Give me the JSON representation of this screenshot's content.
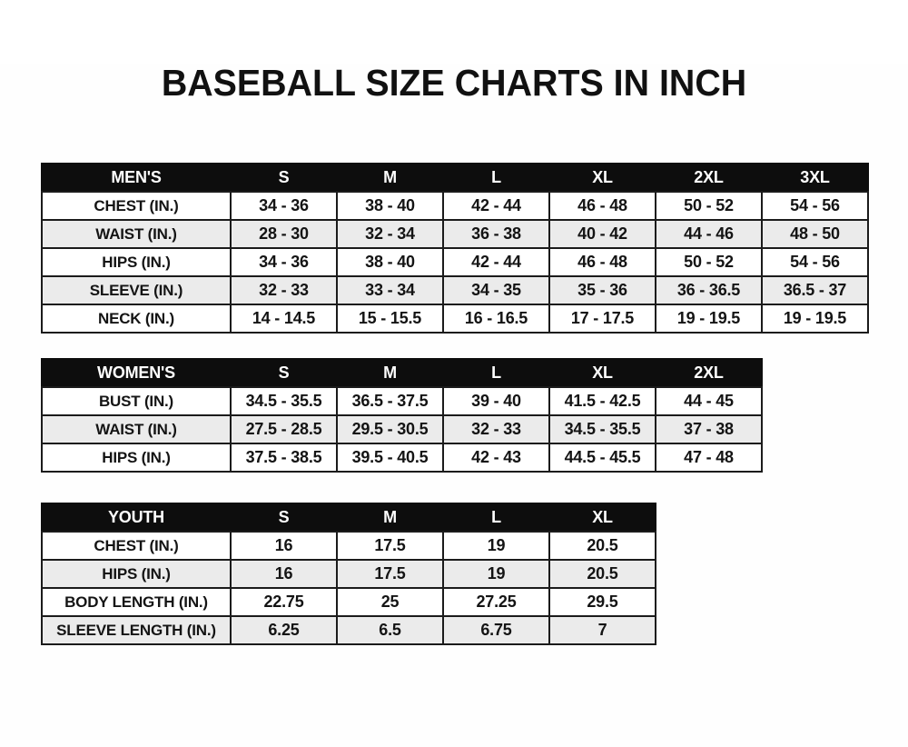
{
  "page": {
    "title": "BASEBALL SIZE CHARTS IN INCH"
  },
  "colors": {
    "header_bg": "#0d0d0d",
    "header_text": "#ffffff",
    "row_bg": "#ffffff",
    "row_alt_bg": "#ebebeb",
    "border": "#1b1b1b",
    "text": "#141414",
    "page_bg": "#fefefe"
  },
  "tables": [
    {
      "id": "mens",
      "header": [
        "MEN'S",
        "S",
        "M",
        "L",
        "XL",
        "2XL",
        "3XL"
      ],
      "rows": [
        {
          "label": "CHEST (IN.)",
          "values": [
            "34 - 36",
            "38 - 40",
            "42 - 44",
            "46 - 48",
            "50 - 52",
            "54 - 56"
          ]
        },
        {
          "label": "WAIST (IN.)",
          "values": [
            "28 - 30",
            "32 - 34",
            "36 - 38",
            "40 - 42",
            "44 - 46",
            "48 - 50"
          ]
        },
        {
          "label": "HIPS (IN.)",
          "values": [
            "34 - 36",
            "38 - 40",
            "42 - 44",
            "46 - 48",
            "50 - 52",
            "54 - 56"
          ]
        },
        {
          "label": "SLEEVE (IN.)",
          "values": [
            "32 - 33",
            "33 - 34",
            "34 - 35",
            "35 - 36",
            "36 - 36.5",
            "36.5 - 37"
          ]
        },
        {
          "label": "NECK (IN.)",
          "values": [
            "14 - 14.5",
            "15 - 15.5",
            "16 - 16.5",
            "17 - 17.5",
            "19 - 19.5",
            "19 - 19.5"
          ]
        }
      ]
    },
    {
      "id": "womens",
      "header": [
        "WOMEN'S",
        "S",
        "M",
        "L",
        "XL",
        "2XL"
      ],
      "rows": [
        {
          "label": "BUST (IN.)",
          "values": [
            "34.5 - 35.5",
            "36.5 - 37.5",
            "39 - 40",
            "41.5 - 42.5",
            "44 - 45"
          ]
        },
        {
          "label": "WAIST (IN.)",
          "values": [
            "27.5 - 28.5",
            "29.5 - 30.5",
            "32 - 33",
            "34.5 - 35.5",
            "37 - 38"
          ]
        },
        {
          "label": "HIPS (IN.)",
          "values": [
            "37.5 - 38.5",
            "39.5 - 40.5",
            "42 - 43",
            "44.5 - 45.5",
            "47 - 48"
          ]
        }
      ]
    },
    {
      "id": "youth",
      "header": [
        "YOUTH",
        "S",
        "M",
        "L",
        "XL"
      ],
      "rows": [
        {
          "label": "CHEST (IN.)",
          "values": [
            "16",
            "17.5",
            "19",
            "20.5"
          ]
        },
        {
          "label": "HIPS (IN.)",
          "values": [
            "16",
            "17.5",
            "19",
            "20.5"
          ]
        },
        {
          "label": "BODY LENGTH (IN.)",
          "values": [
            "22.75",
            "25",
            "27.25",
            "29.5"
          ]
        },
        {
          "label": "SLEEVE LENGTH (IN.)",
          "values": [
            "6.25",
            "6.5",
            "6.75",
            "7"
          ]
        }
      ]
    }
  ]
}
